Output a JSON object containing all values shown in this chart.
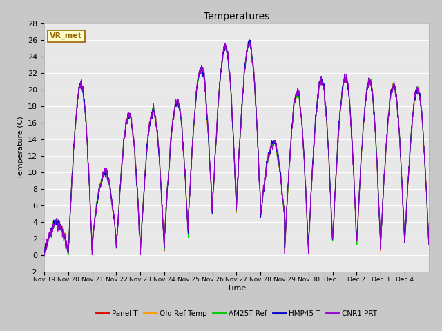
{
  "title": "Temperatures",
  "xlabel": "Time",
  "ylabel": "Temperature (C)",
  "ylim": [
    -2,
    28
  ],
  "yticks": [
    -2,
    0,
    2,
    4,
    6,
    8,
    10,
    12,
    14,
    16,
    18,
    20,
    22,
    24,
    26,
    28
  ],
  "bg_color": "#c8c8c8",
  "plot_bg_color": "#e8e8e8",
  "series_colors": {
    "Panel T": "#dd0000",
    "Old Ref Temp": "#ff9900",
    "AM25T Ref": "#00cc00",
    "HMP45 T": "#0000cc",
    "CNR1 PRT": "#9900cc"
  },
  "series_linewidth": 0.8,
  "vr_met_label": "VR_met",
  "vr_met_box_color": "#ffffcc",
  "vr_met_border_color": "#996600",
  "n_days": 16,
  "daily_peaks": [
    4.0,
    20.5,
    10.0,
    17.0,
    17.5,
    18.5,
    22.5,
    25.0,
    25.5,
    13.5,
    19.5,
    21.0,
    21.5,
    21.0,
    20.5,
    20.0
  ],
  "daily_mins": [
    0.3,
    0.2,
    1.5,
    1.0,
    0.5,
    2.0,
    4.5,
    5.5,
    6.0,
    4.5,
    0.2,
    1.5,
    1.5,
    1.0,
    1.5,
    1.5
  ],
  "date_labels": [
    "Nov 19",
    "Nov 20",
    "Nov 21",
    "Nov 22",
    "Nov 23",
    "Nov 24",
    "Nov 25",
    "Nov 26",
    "Nov 27",
    "Nov 28",
    "Nov 29",
    "Nov 30",
    "Dec 1",
    "Dec 2",
    "Dec 3",
    "Dec 4"
  ]
}
